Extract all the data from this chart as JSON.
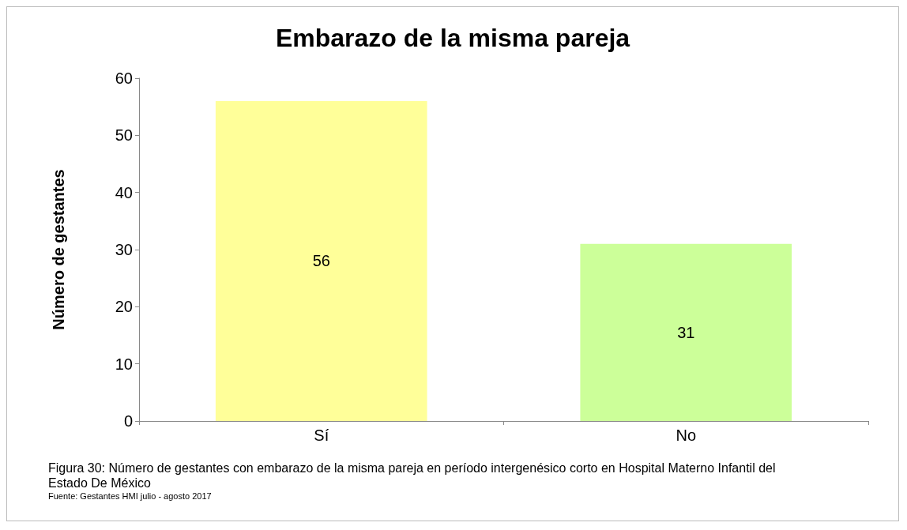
{
  "chart_data": {
    "type": "bar",
    "title": "Embarazo de la misma pareja",
    "ylabel": "Número de gestantes",
    "categories": [
      "Sí",
      "No"
    ],
    "values": [
      56,
      31
    ],
    "colors": [
      "#ffff99",
      "#ccff99"
    ],
    "ylim": [
      0,
      60
    ],
    "yticks": [
      0,
      10,
      20,
      30,
      40,
      50,
      60
    ],
    "grid": false,
    "data_labels": true,
    "annotations": [
      "Figura 30: Número de gestantes con embarazo de la misma pareja en período intergenésico corto en Hospital Materno Infantil del Estado De México",
      "Fuente: Gestantes HMI julio - agosto 2017"
    ]
  }
}
